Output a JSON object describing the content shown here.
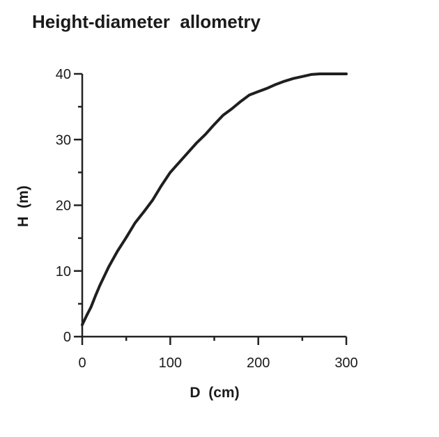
{
  "chart_data": {
    "type": "line",
    "title": "Height-diameter  allometry",
    "xlabel": "D  (cm)",
    "ylabel": "H  (m)",
    "xlim": [
      0,
      300
    ],
    "ylim": [
      0,
      40
    ],
    "xticks": [
      0,
      100,
      200,
      300
    ],
    "yticks": [
      0,
      10,
      20,
      30,
      40
    ],
    "grid": false,
    "legend": "none",
    "line_color": "#1f1f1f",
    "series": [
      {
        "x": [
          0,
          5,
          10,
          15,
          20,
          25,
          30,
          40,
          50,
          60,
          70,
          80,
          90,
          100,
          110,
          120,
          130,
          140,
          150,
          160,
          170,
          180,
          190,
          200,
          210,
          220,
          230,
          240,
          250,
          260,
          270,
          280,
          290,
          300
        ],
        "y": [
          1.8,
          3.2,
          4.5,
          6.2,
          7.8,
          9.2,
          10.6,
          13.0,
          15.1,
          17.3,
          19.0,
          20.8,
          23.0,
          25.0,
          26.5,
          28.0,
          29.5,
          30.8,
          32.3,
          33.7,
          34.7,
          35.8,
          36.8,
          37.3,
          37.8,
          38.4,
          38.9,
          39.3,
          39.6,
          39.9,
          40.0,
          40.0,
          40.0,
          40.0
        ]
      }
    ]
  }
}
